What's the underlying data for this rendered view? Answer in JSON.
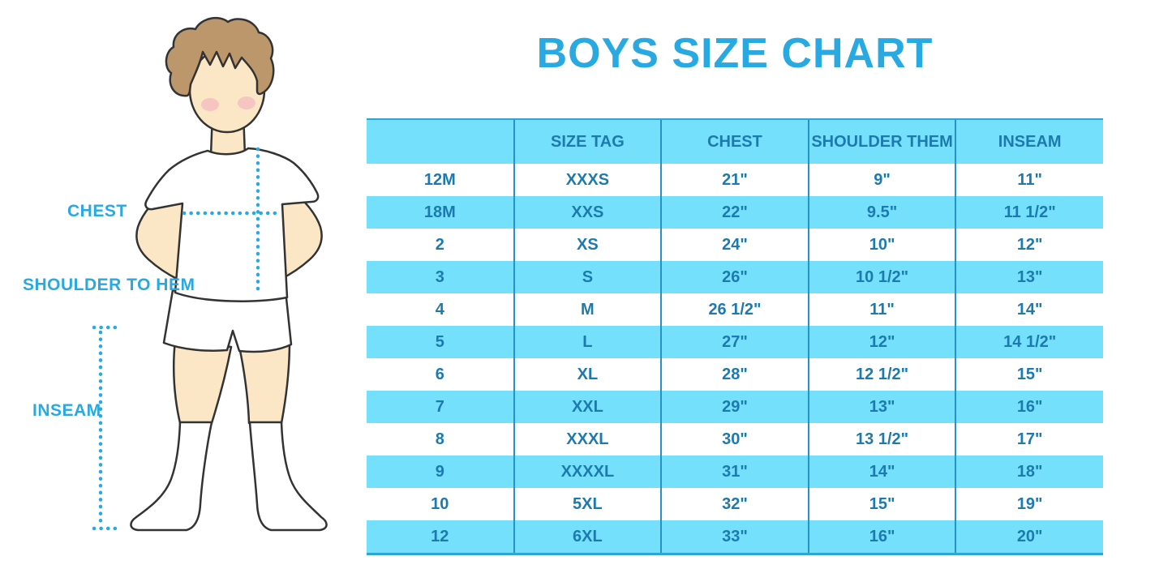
{
  "title": "BOYS SIZE CHART",
  "colors": {
    "accent_blue": "#29A9E1",
    "table_cyan": "#75E0FB",
    "table_text": "#1D7AAE",
    "table_border": "#2693C6",
    "table_edge": "#2FA5CF",
    "skin": "#FBE7C5",
    "hair": "#BC976B",
    "blush": "#F4AFBE"
  },
  "figure": {
    "labels": {
      "chest": "CHEST",
      "shoulder_to_hem": "SHOULDER TO HEM",
      "inseam": "INSEAM"
    }
  },
  "table": {
    "headers": [
      "",
      "SIZE TAG",
      "CHEST",
      "SHOULDER THEM",
      "INSEAM"
    ],
    "rows": [
      [
        "12M",
        "XXXS",
        "21\"",
        "9\"",
        "11\""
      ],
      [
        "18M",
        "XXS",
        "22\"",
        "9.5\"",
        "11 1/2\""
      ],
      [
        "2",
        "XS",
        "24\"",
        "10\"",
        "12\""
      ],
      [
        "3",
        "S",
        "26\"",
        "10 1/2\"",
        "13\""
      ],
      [
        "4",
        "M",
        "26 1/2\"",
        "11\"",
        "14\""
      ],
      [
        "5",
        "L",
        "27\"",
        "12\"",
        "14 1/2\""
      ],
      [
        "6",
        "XL",
        "28\"",
        "12 1/2\"",
        "15\""
      ],
      [
        "7",
        "XXL",
        "29\"",
        "13\"",
        "16\""
      ],
      [
        "8",
        "XXXL",
        "30\"",
        "13 1/2\"",
        "17\""
      ],
      [
        "9",
        "XXXXL",
        "31\"",
        "14\"",
        "18\""
      ],
      [
        "10",
        "5XL",
        "32\"",
        "15\"",
        "19\""
      ],
      [
        "12",
        "6XL",
        "33\"",
        "16\"",
        "20\""
      ]
    ]
  }
}
